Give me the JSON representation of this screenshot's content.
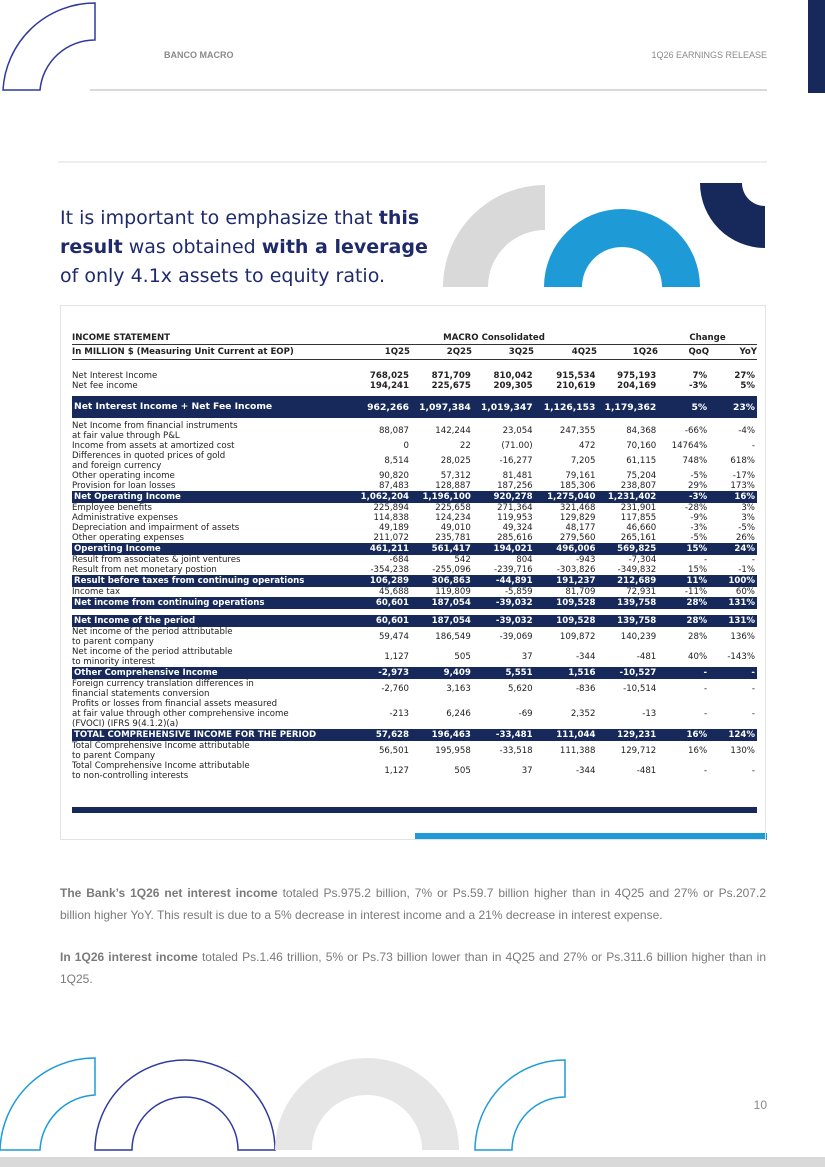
{
  "header": {
    "brand": "BANCO MACRO",
    "title": "1Q26 EARNINGS RELEASE"
  },
  "highlight": [
    {
      "text": "It is important to emphasize that ",
      "bold": false
    },
    {
      "text": "this result",
      "bold": true
    },
    {
      "text": " was obtained ",
      "bold": false
    },
    {
      "text": "with a leverage",
      "bold": true
    },
    {
      "text": " of only 4.1x assets to equity ratio.",
      "bold": false
    }
  ],
  "table": {
    "header": {
      "title": "INCOME STATEMENT",
      "group": "MACRO Consolidated",
      "change": "Change",
      "unit": "In MILLION $ (Measuring Unit Current at EOP)",
      "columns": [
        "1Q25",
        "2Q25",
        "3Q25",
        "4Q25",
        "1Q26",
        "QoQ",
        "YoY"
      ]
    },
    "rows": [
      {
        "label": "Net Interest Income",
        "style": "bold",
        "cells": [
          "768,025",
          "871,709",
          "810,042",
          "915,534",
          "975,193",
          "7%",
          "27%"
        ]
      },
      {
        "label": "Net fee income",
        "style": "bold",
        "cells": [
          "194,241",
          "225,675",
          "209,305",
          "210,619",
          "204,169",
          "-3%",
          "5%"
        ]
      },
      {
        "label": "Net Interest Income + Net Fee Income",
        "style": "dark-tall",
        "cells": [
          "962,266",
          "1,097,384",
          "1,019,347",
          "1,126,153",
          "1,179,362",
          "5%",
          "23%"
        ]
      },
      {
        "label": "Net Income from financial instruments\n at fair value through P&L",
        "style": "plain",
        "cells": [
          "88,087",
          "142,244",
          "23,054",
          "247,355",
          "84,368",
          "-66%",
          "-4%"
        ]
      },
      {
        "label": "Income from assets at amortized cost",
        "style": "plain",
        "cells": [
          "0",
          "22",
          "(71.00)",
          "472",
          "70,160",
          "14764%",
          "-"
        ]
      },
      {
        "label": "Differences in quoted prices of gold\n and foreign currency",
        "style": "plain",
        "cells": [
          "8,514",
          "28,025",
          "-16,277",
          "7,205",
          "61,115",
          "748%",
          "618%"
        ]
      },
      {
        "label": "Other operating income",
        "style": "plain",
        "cells": [
          "90,820",
          "57,312",
          "81,481",
          "79,161",
          "75,204",
          "-5%",
          "-17%"
        ]
      },
      {
        "label": "Provision for loan losses",
        "style": "plain",
        "cells": [
          "87,483",
          "128,887",
          "187,256",
          "185,306",
          "238,807",
          "29%",
          "173%"
        ]
      },
      {
        "label": "Net Operating Income",
        "style": "dark",
        "cells": [
          "1,062,204",
          "1,196,100",
          "920,278",
          "1,275,040",
          "1,231,402",
          "-3%",
          "16%"
        ]
      },
      {
        "label": "Employee benefits",
        "style": "plain",
        "cells": [
          "225,894",
          "225,658",
          "271,364",
          "321,468",
          "231,901",
          "-28%",
          "3%"
        ]
      },
      {
        "label": "Administrative expenses",
        "style": "plain",
        "cells": [
          "114,838",
          "124,234",
          "119,953",
          "129,829",
          "117,855",
          "-9%",
          "3%"
        ]
      },
      {
        "label": "Depreciation and impairment of assets",
        "style": "plain",
        "cells": [
          "49,189",
          "49,010",
          "49,324",
          "48,177",
          "46,660",
          "-3%",
          "-5%"
        ]
      },
      {
        "label": "Other operating expenses",
        "style": "plain",
        "cells": [
          "211,072",
          "235,781",
          "285,616",
          "279,560",
          "265,161",
          "-5%",
          "26%"
        ]
      },
      {
        "label": "Operating Income",
        "style": "dark",
        "cells": [
          "461,211",
          "561,417",
          "194,021",
          "496,006",
          "569,825",
          "15%",
          "24%"
        ]
      },
      {
        "label": "Result from associates & joint ventures",
        "style": "plain",
        "cells": [
          "-684",
          "542",
          "804",
          "-943",
          "-7,304",
          "-",
          "-"
        ]
      },
      {
        "label": "Result from net monetary postion",
        "style": "plain",
        "cells": [
          "-354,238",
          "-255,096",
          "-239,716",
          "-303,826",
          "-349,832",
          "15%",
          "-1%"
        ]
      },
      {
        "label": "Result before taxes from continuing operations",
        "style": "dark",
        "cells": [
          "106,289",
          "306,863",
          "-44,891",
          "191,237",
          "212,689",
          "11%",
          "100%"
        ]
      },
      {
        "label": "Income tax",
        "style": "plain",
        "cells": [
          "45,688",
          "119,809",
          "-5,859",
          "81,709",
          "72,931",
          "-11%",
          "60%"
        ]
      },
      {
        "label": "Net income from continuing operations",
        "style": "dark",
        "cells": [
          "60,601",
          "187,054",
          "-39,032",
          "109,528",
          "139,758",
          "28%",
          "131%"
        ]
      },
      {
        "label": "Net Income of the period",
        "style": "dark-gap",
        "cells": [
          "60,601",
          "187,054",
          "-39,032",
          "109,528",
          "139,758",
          "28%",
          "131%"
        ]
      },
      {
        "label": "Net income of the period attributable\n to parent company",
        "style": "plain",
        "cells": [
          "59,474",
          "186,549",
          "-39,069",
          "109,872",
          "140,239",
          "28%",
          "136%"
        ]
      },
      {
        "label": "Net income of the period attributable\n to minority interest",
        "style": "plain",
        "cells": [
          "1,127",
          "505",
          "37",
          "-344",
          "-481",
          "40%",
          "-143%"
        ]
      },
      {
        "label": "Other Comprehensive Income",
        "style": "dark",
        "cells": [
          "-2,973",
          "9,409",
          "5,551",
          "1,516",
          "-10,527",
          "-",
          "-"
        ]
      },
      {
        "label": "Foreign currency translation differences in\nfinancial statements conversion",
        "style": "plain",
        "cells": [
          "-2,760",
          "3,163",
          "5,620",
          "-836",
          "-10,514",
          "-",
          "-"
        ]
      },
      {
        "label": "Profits or losses from financial assets measured\nat fair value  through other comprehensive income\n(FVOCI)  (IFRS 9(4.1.2)(a)",
        "style": "plain",
        "cells": [
          "-213",
          "6,246",
          "-69",
          "2,352",
          "-13",
          "-",
          "-"
        ]
      },
      {
        "label": "TOTAL COMPREHENSIVE INCOME FOR THE PERIOD",
        "style": "dark",
        "cells": [
          "57,628",
          "196,463",
          "-33,481",
          "111,044",
          "129,231",
          "16%",
          "124%"
        ]
      },
      {
        "label": "Total Comprehensive Income attributable\nto parent Company",
        "style": "plain",
        "cells": [
          "56,501",
          "195,958",
          "-33,518",
          "111,388",
          "129,712",
          "16%",
          "130%"
        ]
      },
      {
        "label": "Total Comprehensive Income attributable\nto non-controlling interests",
        "style": "plain",
        "cells": [
          "1,127",
          "505",
          "37",
          "-344",
          "-481",
          "-",
          "-"
        ]
      }
    ]
  },
  "paragraphs": [
    [
      {
        "text": "The Bank’s 1Q26 net interest income",
        "bold": true
      },
      {
        "text": " totaled Ps.975.2 billion, 7% or Ps.59.7 billion higher than in 4Q25 and 27% or Ps.207.2 billion higher YoY. This result is due to a 5% decrease in interest income and a 21% decrease in interest expense.",
        "bold": false
      }
    ],
    [
      {
        "text": "In 1Q26 interest income",
        "bold": true
      },
      {
        "text": " totaled Ps.1.46 trillion, 5% or Ps.73 billion lower than in 4Q25 and 27% or Ps.311.6 billion higher than in 1Q25.",
        "bold": false
      }
    ]
  ],
  "page_number": "10"
}
